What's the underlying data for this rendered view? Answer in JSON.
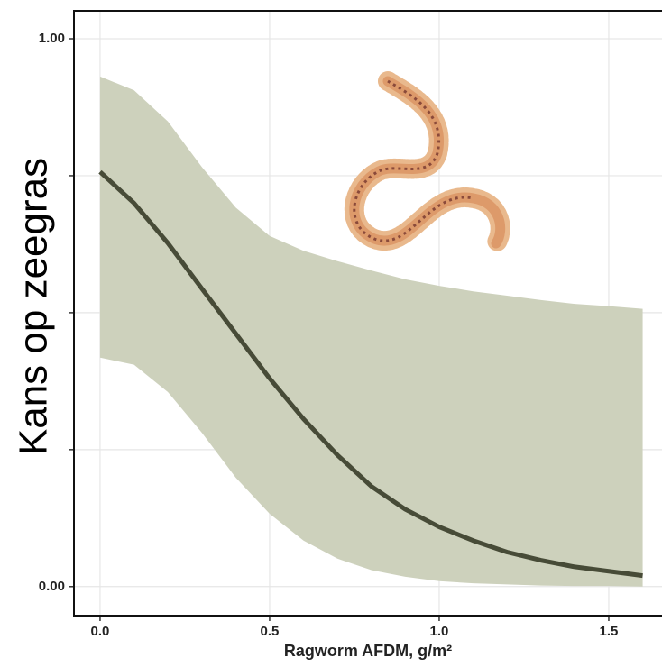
{
  "chart_data": {
    "type": "line",
    "ylabel": "Kans op zeegras",
    "xlabel": "Ragworm AFDM, g/m²",
    "x": [
      0.0,
      0.1,
      0.2,
      0.3,
      0.4,
      0.5,
      0.6,
      0.7,
      0.8,
      0.9,
      1.0,
      1.1,
      1.2,
      1.3,
      1.4,
      1.5,
      1.6
    ],
    "series": [
      {
        "color": "#474b37",
        "values": [
          0.757,
          0.7,
          0.627,
          0.544,
          0.462,
          0.38,
          0.306,
          0.24,
          0.183,
          0.141,
          0.109,
          0.084,
          0.063,
          0.048,
          0.036,
          0.028,
          0.02
        ]
      }
    ],
    "band": {
      "color": "#cdd1bc",
      "upper": [
        0.931,
        0.906,
        0.849,
        0.766,
        0.692,
        0.64,
        0.613,
        0.594,
        0.577,
        0.561,
        0.549,
        0.539,
        0.531,
        0.523,
        0.516,
        0.512,
        0.507
      ],
      "lower": [
        0.418,
        0.405,
        0.355,
        0.281,
        0.199,
        0.133,
        0.084,
        0.051,
        0.03,
        0.018,
        0.01,
        0.006,
        0.004,
        0.002,
        0.001,
        0.001,
        0.0
      ]
    },
    "xlim": [
      -0.077,
      1.657
    ],
    "ylim": [
      -0.053,
      1.051
    ],
    "xticks": [
      {
        "value": 0,
        "label": "0.0"
      },
      0.5,
      {
        "value": 1,
        "label": "1.0"
      },
      1.5
    ],
    "yticks": [
      {
        "value": 0,
        "label": "0.00"
      },
      {
        "value": 0.25,
        "label": null
      },
      {
        "value": 0.5,
        "label": null
      },
      {
        "value": 0.75,
        "label": null
      },
      {
        "value": 1,
        "label": "1.00"
      }
    ],
    "grid": true
  }
}
